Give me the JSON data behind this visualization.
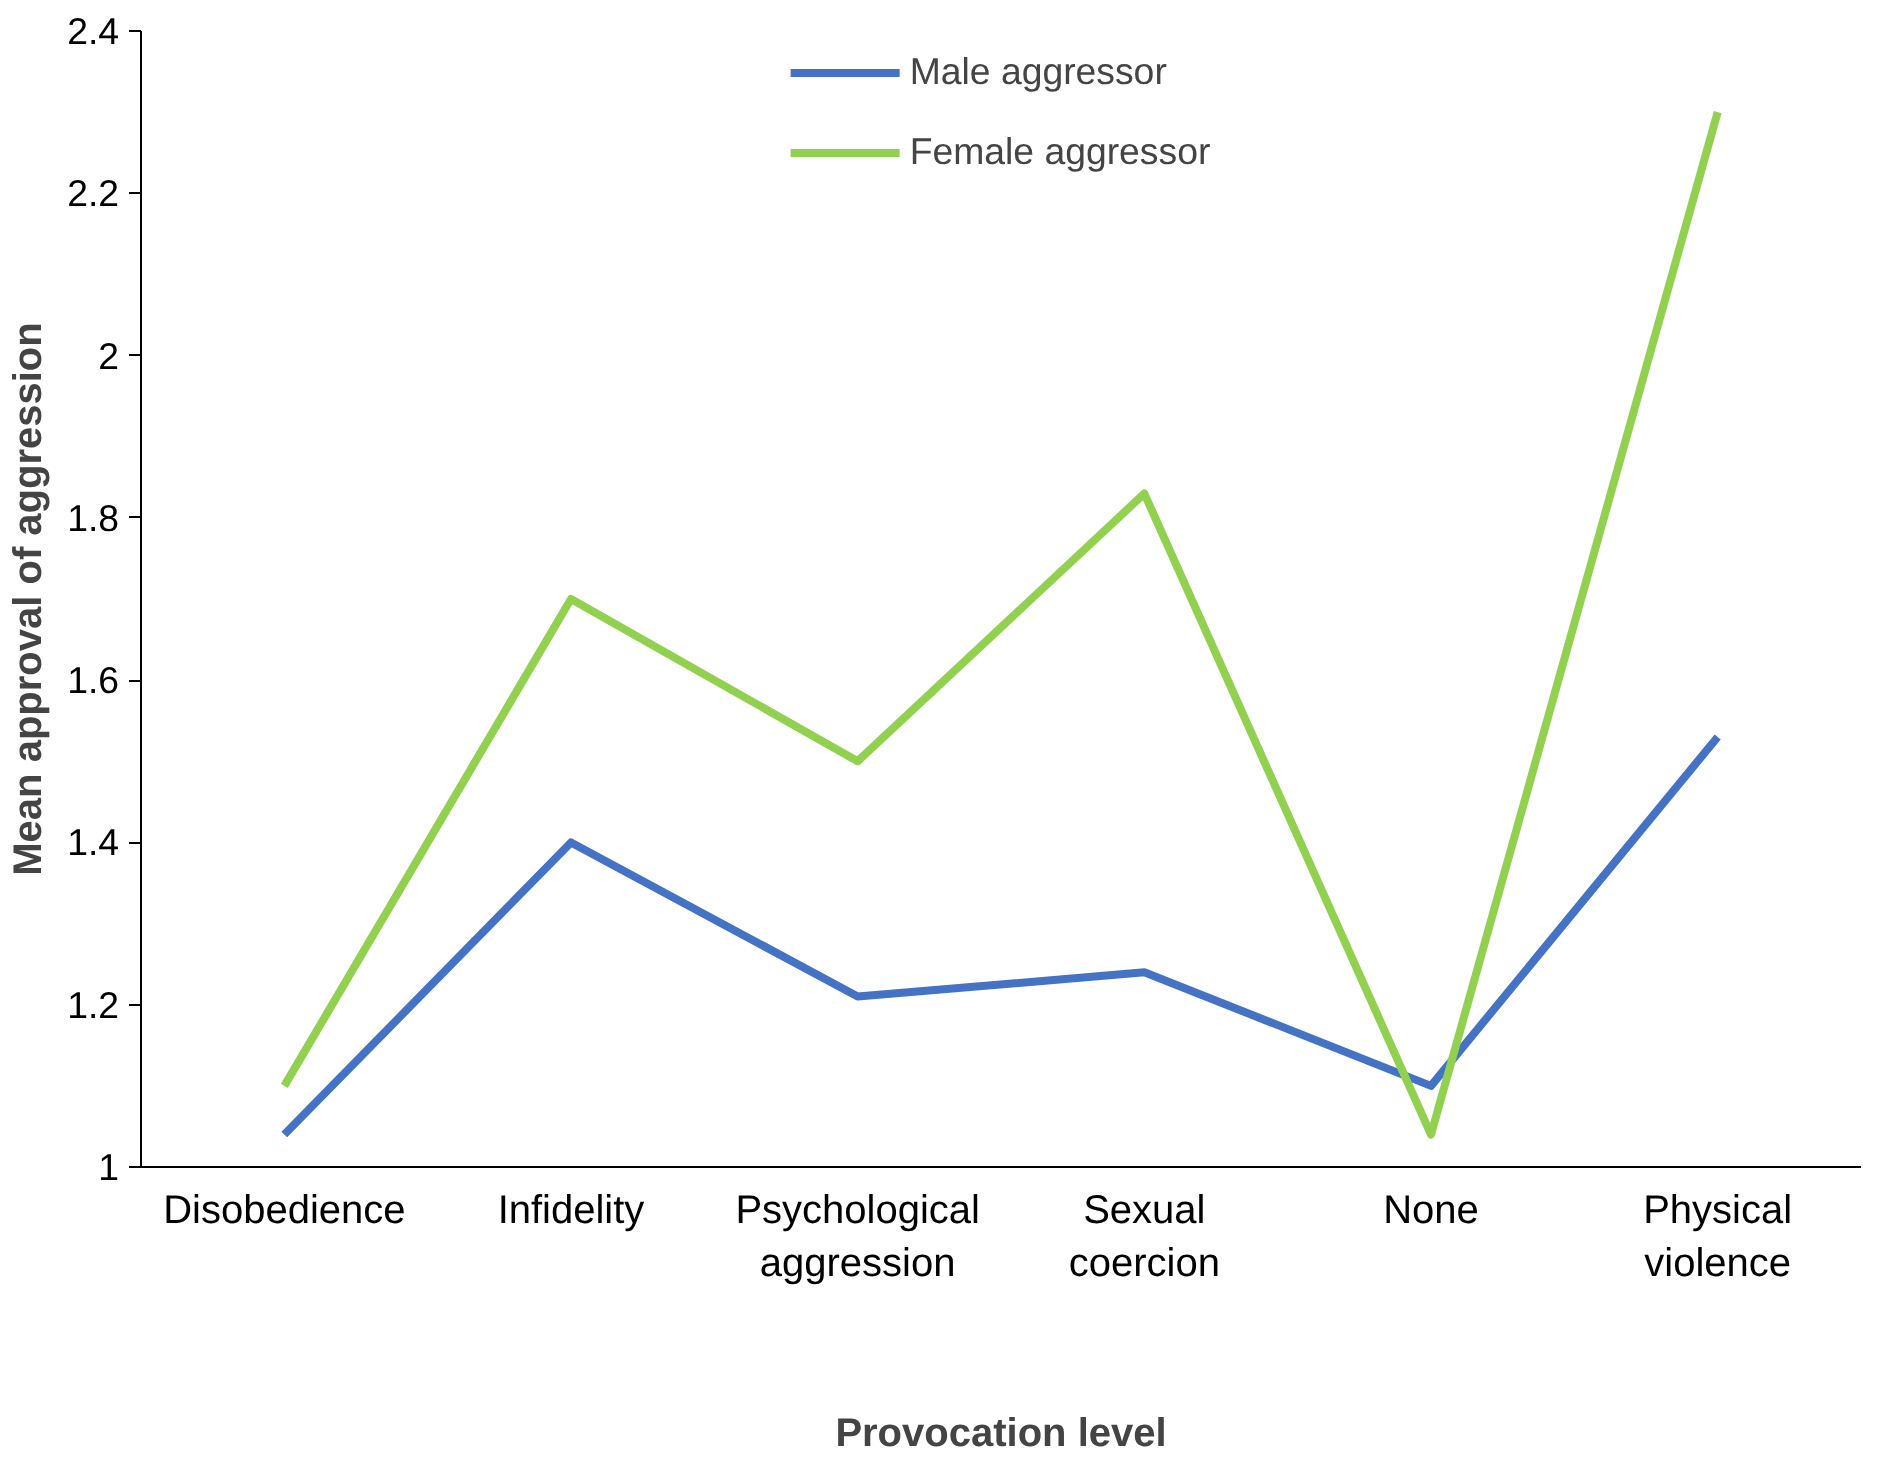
{
  "chart_data": {
    "type": "line",
    "xlabel": "Provocation level",
    "ylabel": "Mean approval of aggression",
    "categories": [
      "Disobedience",
      "Infidelity",
      "Psychological aggression",
      "Sexual coercion",
      "None",
      "Physical violence"
    ],
    "series": [
      {
        "name": "Male aggressor",
        "color": "#4472c4",
        "values": [
          1.04,
          1.4,
          1.21,
          1.24,
          1.1,
          1.53
        ]
      },
      {
        "name": "Female aggressor",
        "color": "#92d050",
        "values": [
          1.1,
          1.7,
          1.5,
          1.83,
          1.04,
          2.3
        ]
      }
    ],
    "ylim": [
      1,
      2.4
    ],
    "yticks": [
      1,
      1.2,
      1.4,
      1.6,
      1.8,
      2,
      2.2,
      2.4
    ],
    "grid": false,
    "legend": "top",
    "marker": "none",
    "line_style": "solid"
  }
}
